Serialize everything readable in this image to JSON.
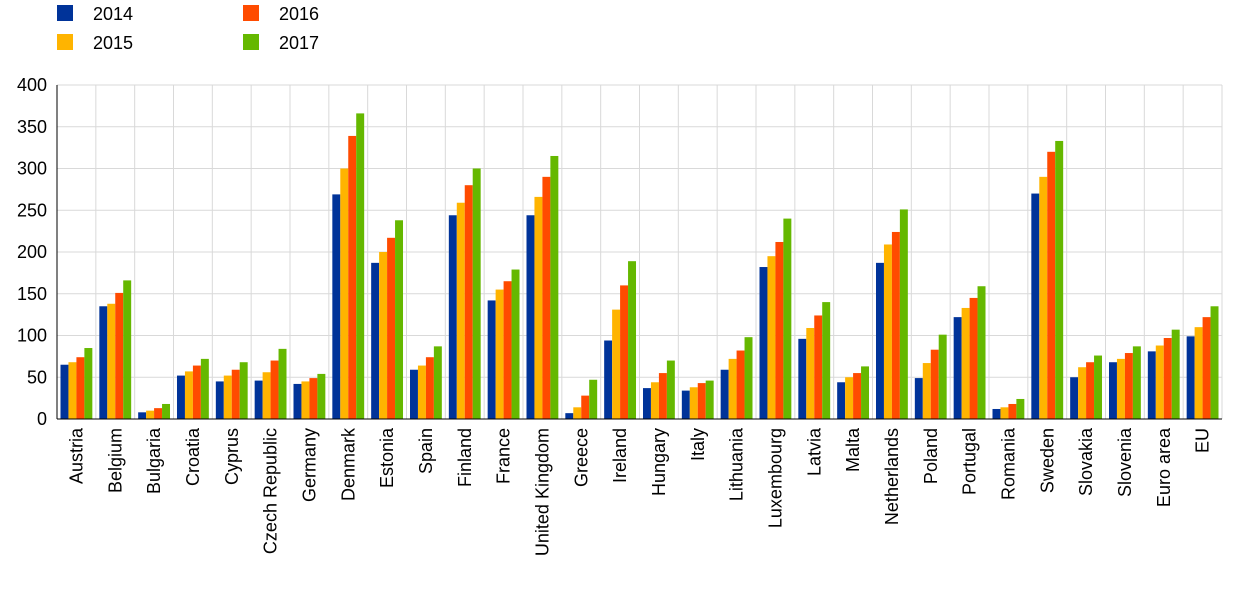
{
  "chart_data": {
    "type": "bar",
    "title": "",
    "xlabel": "",
    "ylabel": "",
    "ylim": [
      0,
      400
    ],
    "yticks": [
      0,
      50,
      100,
      150,
      200,
      250,
      300,
      350,
      400
    ],
    "grid": true,
    "legend_position": "top-left",
    "categories": [
      "Austria",
      "Belgium",
      "Bulgaria",
      "Croatia",
      "Cyprus",
      "Czech Republic",
      "Germany",
      "Denmark",
      "Estonia",
      "Spain",
      "Finland",
      "France",
      "United Kingdom",
      "Greece",
      "Ireland",
      "Hungary",
      "Italy",
      "Lithuania",
      "Luxembourg",
      "Latvia",
      "Malta",
      "Netherlands",
      "Poland",
      "Portugal",
      "Romania",
      "Sweden",
      "Slovakia",
      "Slovenia",
      "Euro area",
      "EU"
    ],
    "series": [
      {
        "name": "2014",
        "color": "#003399",
        "values": [
          65,
          135,
          8,
          52,
          45,
          46,
          42,
          269,
          187,
          59,
          244,
          142,
          244,
          7,
          94,
          37,
          34,
          59,
          182,
          96,
          44,
          187,
          49,
          122,
          12,
          270,
          50,
          68,
          81,
          99
        ]
      },
      {
        "name": "2015",
        "color": "#FFB400",
        "values": [
          68,
          138,
          10,
          57,
          52,
          56,
          45,
          300,
          200,
          64,
          259,
          155,
          266,
          14,
          131,
          44,
          38,
          72,
          195,
          109,
          50,
          209,
          67,
          133,
          14,
          290,
          62,
          72,
          88,
          110
        ]
      },
      {
        "name": "2016",
        "color": "#FF4B00",
        "values": [
          74,
          151,
          13,
          64,
          59,
          70,
          49,
          339,
          217,
          74,
          280,
          165,
          290,
          28,
          160,
          55,
          43,
          82,
          212,
          124,
          55,
          224,
          83,
          145,
          18,
          320,
          68,
          79,
          97,
          122
        ]
      },
      {
        "name": "2017",
        "color": "#65B800",
        "values": [
          85,
          166,
          18,
          72,
          68,
          84,
          54,
          366,
          238,
          87,
          300,
          179,
          315,
          47,
          189,
          70,
          46,
          98,
          240,
          140,
          63,
          251,
          101,
          159,
          24,
          333,
          76,
          87,
          107,
          135
        ]
      }
    ]
  }
}
